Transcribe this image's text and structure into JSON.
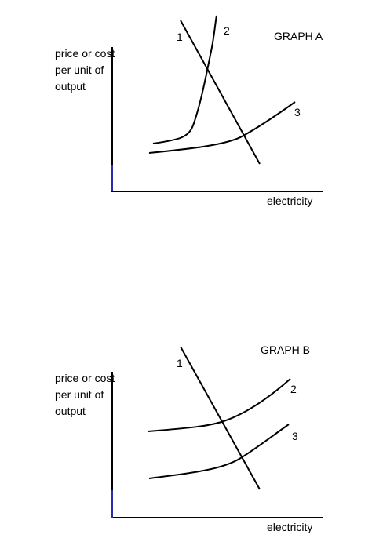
{
  "graph_a": {
    "title": "GRAPH A",
    "ylabel": "price or cost per unit of output",
    "xlabel": "electricity",
    "curve_labels": [
      "1",
      "2",
      "3"
    ]
  },
  "graph_b": {
    "title": "GRAPH B",
    "ylabel": "price or cost per unit of output",
    "xlabel": "electricity",
    "curve_labels": [
      "1",
      "2",
      "3"
    ]
  },
  "colors": {
    "line": "#000000",
    "axis_accent": "#2b2bb0"
  }
}
